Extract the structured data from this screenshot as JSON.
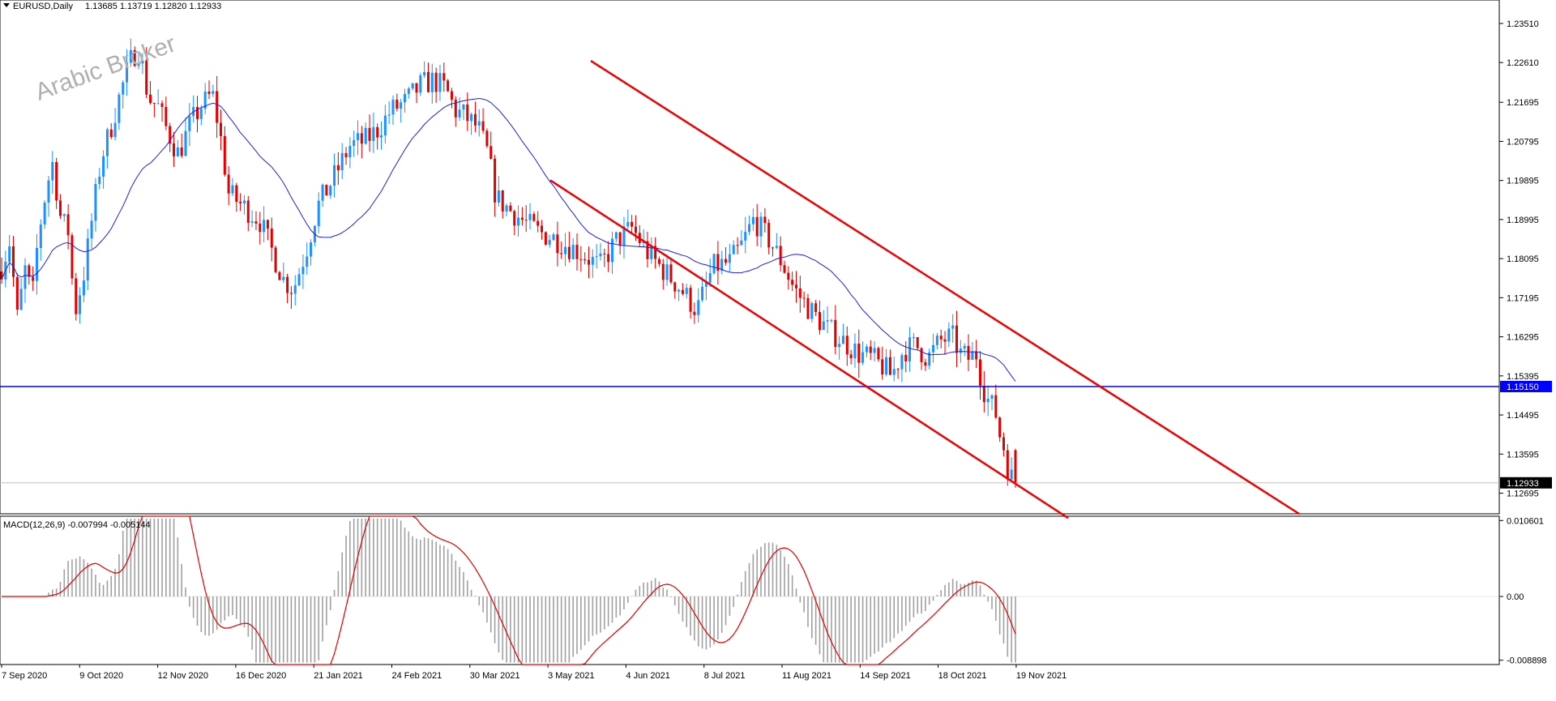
{
  "chart_data": [
    {
      "type": "candlestick",
      "title": "EURUSD,Daily",
      "ohlc_label": "1.13685 1.13719 1.12820 1.12933",
      "watermark": "Arabic Broker",
      "y_ticks": [
        "1.23510",
        "1.22610",
        "1.21695",
        "1.20795",
        "1.19895",
        "1.18995",
        "1.18095",
        "1.17195",
        "1.16295",
        "1.15395",
        "1.14495",
        "1.13595",
        "1.12695"
      ],
      "ylim": [
        1.1222,
        1.2405
      ],
      "horizontal_level": {
        "value": 1.1515,
        "label": "1.15150",
        "color": "#0000ff"
      },
      "current_price": {
        "value": 1.12933,
        "label": "1.12933"
      },
      "colors": {
        "up": "#1e90ff",
        "down": "#e00000",
        "ma": "#2020e0",
        "channel": "#ee0000"
      },
      "moving_average": "blue line",
      "channel": "red descending channel"
    },
    {
      "type": "histogram+line",
      "title": "MACD(12,26,9) -0.007994 -0.005144",
      "y_ticks": [
        "0.010601",
        "0.00",
        "-0.008898"
      ],
      "ylim": [
        -0.0095,
        0.0112
      ],
      "histogram_color": "#a0a0a0",
      "signal_color": "#e00000"
    }
  ],
  "x_axis": {
    "labels": [
      "7 Sep 2020",
      "9 Oct 2020",
      "12 Nov 2020",
      "16 Dec 2020",
      "21 Jan 2021",
      "24 Feb 2021",
      "30 Mar 2021",
      "3 May 2021",
      "4 Jun 2021",
      "8 Jul 2021",
      "11 Aug 2021",
      "14 Sep 2021",
      "18 Oct 2021",
      "19 Nov 2021"
    ]
  }
}
